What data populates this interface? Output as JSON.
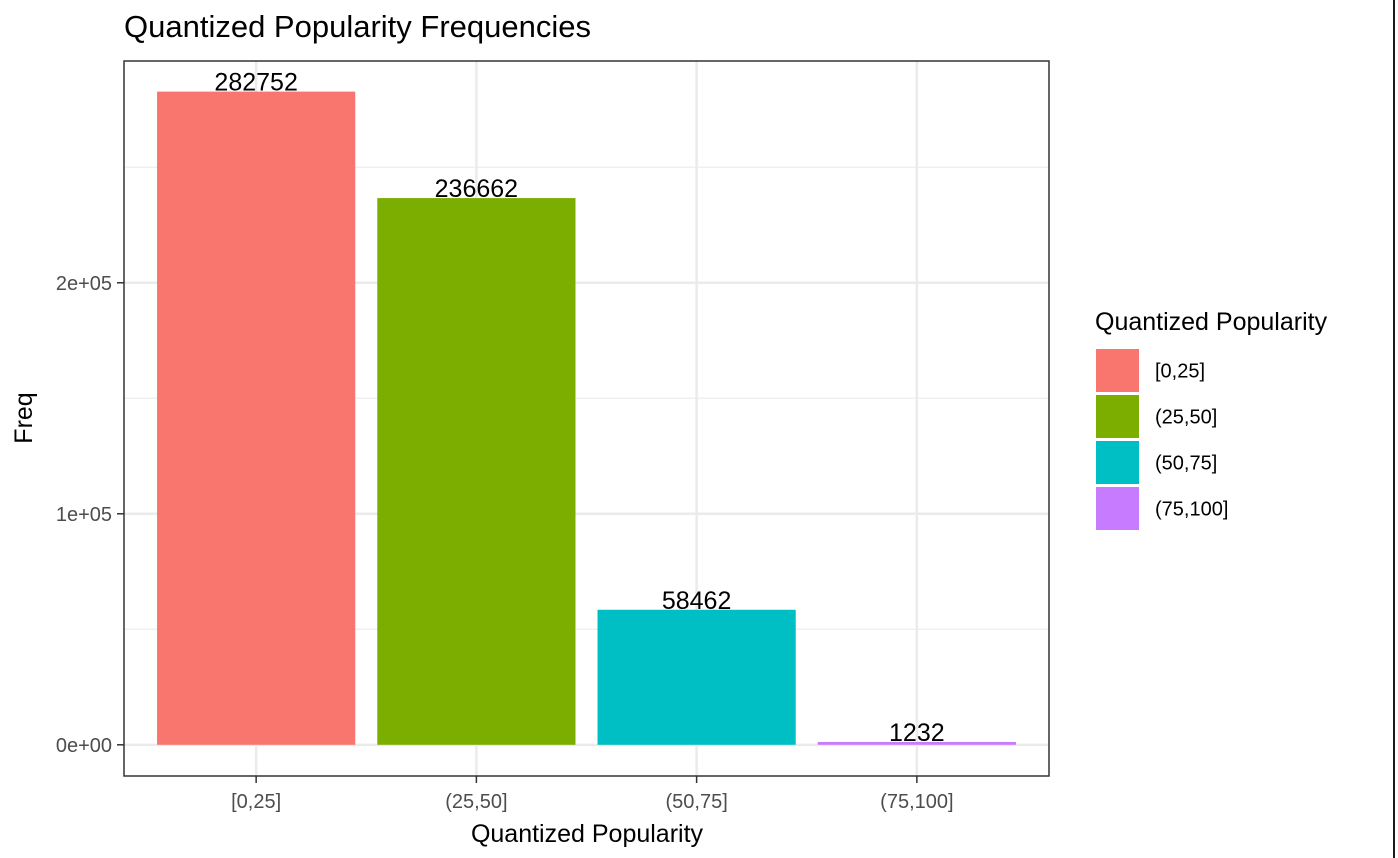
{
  "chart_data": {
    "type": "bar",
    "title": "Quantized Popularity Frequencies",
    "xlabel": "Quantized Popularity",
    "ylabel": "Freq",
    "categories": [
      "[0,25]",
      "(25,50]",
      "(50,75]",
      "(75,100]"
    ],
    "values": [
      282752,
      236662,
      58462,
      1232
    ],
    "data_labels": [
      "282752",
      "236662",
      "58462",
      "1232"
    ],
    "ylim": [
      -13500,
      296000
    ],
    "yticks": [
      0,
      100000,
      200000
    ],
    "ytick_labels": [
      "0e+00",
      "1e+05",
      "2e+05"
    ],
    "grid": true,
    "colors": [
      "#F8766D",
      "#7CAE00",
      "#00BFC4",
      "#C77CFF"
    ],
    "legend": {
      "title": "Quantized Popularity",
      "position": "right",
      "entries": [
        "[0,25]",
        "(25,50]",
        "(50,75]",
        "(75,100]"
      ]
    }
  }
}
